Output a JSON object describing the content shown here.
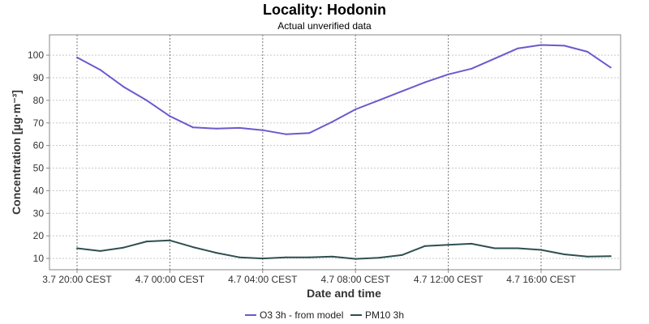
{
  "chart_data": {
    "type": "line",
    "title": "Locality: Hodonin",
    "subtitle": "Actual unverified data",
    "xlabel": "Date and time",
    "ylabel": "Concentration [µg·m⁻³]",
    "ylim": [
      5,
      109
    ],
    "yticks": [
      10,
      20,
      30,
      40,
      50,
      60,
      70,
      80,
      90,
      100
    ],
    "x_ticks": [
      {
        "index": 0,
        "label": "3.7 20:00 CEST"
      },
      {
        "index": 4,
        "label": "4.7 00:00 CEST"
      },
      {
        "index": 8,
        "label": "4.7 04:00 CEST"
      },
      {
        "index": 12,
        "label": "4.7 08:00 CEST"
      },
      {
        "index": 16,
        "label": "4.7 12:00 CEST"
      },
      {
        "index": 20,
        "label": "4.7 16:00 CEST"
      }
    ],
    "x": [
      "3.7 20:00",
      "3.7 21:00",
      "3.7 22:00",
      "3.7 23:00",
      "4.7 00:00",
      "4.7 01:00",
      "4.7 02:00",
      "4.7 03:00",
      "4.7 04:00",
      "4.7 05:00",
      "4.7 06:00",
      "4.7 07:00",
      "4.7 08:00",
      "4.7 09:00",
      "4.7 10:00",
      "4.7 11:00",
      "4.7 12:00",
      "4.7 13:00",
      "4.7 14:00",
      "4.7 15:00",
      "4.7 16:00",
      "4.7 17:00",
      "4.7 18:00",
      "4.7 19:00"
    ],
    "series": [
      {
        "name": "O3 3h - from model",
        "color": "#6a5acd",
        "values": [
          99,
          93.5,
          86,
          80,
          73,
          68,
          67.5,
          67.8,
          66.8,
          65,
          65.5,
          70.5,
          76,
          80,
          84,
          88,
          91.5,
          94,
          98.5,
          103,
          104.5,
          104.2,
          101.5,
          94.5
        ]
      },
      {
        "name": "PM10 3h",
        "color": "#2f4f4f",
        "values": [
          14.5,
          13.3,
          14.8,
          17.5,
          18,
          15,
          12.5,
          10.5,
          10,
          10.5,
          10.5,
          10.8,
          9.8,
          10.3,
          11.5,
          15.5,
          16,
          16.5,
          14.5,
          14.5,
          13.8,
          11.8,
          10.8,
          11
        ]
      }
    ],
    "grid": true,
    "legend": "bottom"
  }
}
